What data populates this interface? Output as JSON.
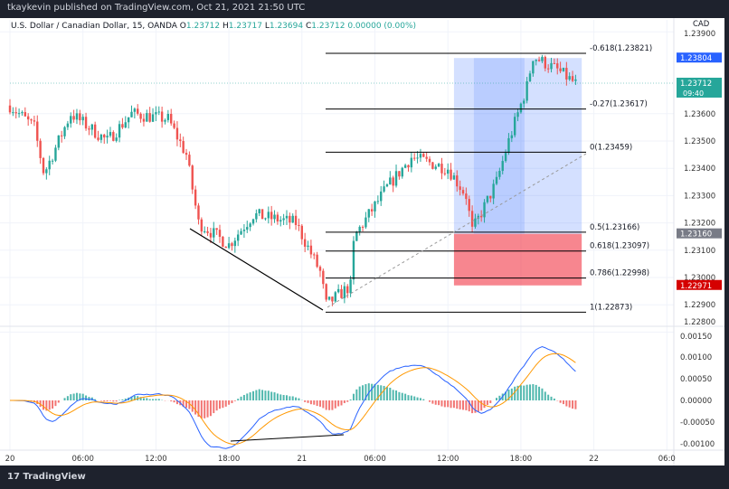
{
  "header": {
    "published": "tkaykevin published on TradingView.com, Oct 21, 2021 21:50 UTC"
  },
  "legend": {
    "symbol": "U.S. Dollar / Canadian Dollar, 15, OANDA",
    "o_label": "O",
    "o": "1.23712",
    "h_label": "H",
    "h": "1.23717",
    "l_label": "L",
    "l": "1.23694",
    "c_label": "C",
    "c": "1.23712",
    "change": "0.00000 (0.00%)"
  },
  "footer": {
    "brand": "TradingView"
  },
  "chart_data": {
    "type": "candlestick",
    "currency": "CAD",
    "price_ticks": [
      "1.23900",
      "1.23600",
      "1.23500",
      "1.23400",
      "1.23300",
      "1.23200",
      "1.23100",
      "1.23000",
      "1.22900",
      "1.22800"
    ],
    "price_tick_values": [
      1.239,
      1.236,
      1.235,
      1.234,
      1.233,
      1.232,
      1.231,
      1.23,
      1.229,
      1.228
    ],
    "price_badges": [
      {
        "text": "1.23804",
        "value": 1.23804,
        "color": "#2962ff"
      },
      {
        "text": "1.23712",
        "sub": "09:40",
        "value": 1.23712,
        "color": "#26a69a"
      },
      {
        "text": "1.23160",
        "value": 1.2316,
        "color": "#787b86"
      },
      {
        "text": "1.22971",
        "value": 1.22971,
        "color": "#d50000"
      }
    ],
    "time_ticks": [
      {
        "h": 0,
        "label": "20"
      },
      {
        "h": 6,
        "label": "06:00"
      },
      {
        "h": 12,
        "label": "12:00"
      },
      {
        "h": 18,
        "label": "18:00"
      },
      {
        "h": 24,
        "label": "21"
      },
      {
        "h": 30,
        "label": "06:00"
      },
      {
        "h": 36,
        "label": "12:00"
      },
      {
        "h": 42,
        "label": "18:00"
      },
      {
        "h": 48,
        "label": "22"
      },
      {
        "h": 54,
        "label": "06:0"
      }
    ],
    "price_path": [
      [
        0,
        1.2363
      ],
      [
        2,
        1.2355
      ],
      [
        2.8,
        1.2338
      ],
      [
        5,
        1.236
      ],
      [
        8,
        1.235
      ],
      [
        10,
        1.236
      ],
      [
        13,
        1.2358
      ],
      [
        14.5,
        1.2345
      ],
      [
        15.5,
        1.232
      ],
      [
        18,
        1.2312
      ],
      [
        20,
        1.2323
      ],
      [
        23.5,
        1.232
      ],
      [
        25.5,
        1.2302
      ],
      [
        26,
        1.229
      ],
      [
        28,
        1.2297
      ],
      [
        28.3,
        1.2315
      ],
      [
        31,
        1.2333
      ],
      [
        33,
        1.2344
      ],
      [
        36,
        1.234
      ],
      [
        37.5,
        1.233
      ],
      [
        38,
        1.2317
      ],
      [
        40,
        1.2335
      ],
      [
        41,
        1.235
      ],
      [
        42.5,
        1.237
      ],
      [
        43,
        1.2381
      ],
      [
        45,
        1.2376
      ],
      [
        46.5,
        1.2371
      ]
    ],
    "fib_levels": [
      {
        "label": "-0.618(1.23821)",
        "value": 1.23821
      },
      {
        "label": "-0.27(1.23617)",
        "value": 1.23617
      },
      {
        "label": "0(1.23459)",
        "value": 1.23459
      },
      {
        "label": "0.5(1.23166)",
        "value": 1.23166
      },
      {
        "label": "0.618(1.23097)",
        "value": 1.23097
      },
      {
        "label": "0.786(1.22998)",
        "value": 1.22998
      },
      {
        "label": "1(1.22873)",
        "value": 1.22873
      }
    ],
    "position": {
      "entry": 1.2316,
      "target": 1.23804,
      "stop": 1.22971,
      "start_h": 36.5,
      "end_h": 47
    },
    "macd_ticks": [
      "0.00150",
      "0.00100",
      "0.00050",
      "0.00000",
      "-0.00050",
      "-0.00100"
    ],
    "macd_tick_values": [
      0.0015,
      0.001,
      0.0005,
      0,
      -0.0005,
      -0.001
    ],
    "colors": {
      "up": "#26a69a",
      "down": "#ef5350",
      "macd": "#2962ff",
      "signal": "#ff9800"
    }
  }
}
